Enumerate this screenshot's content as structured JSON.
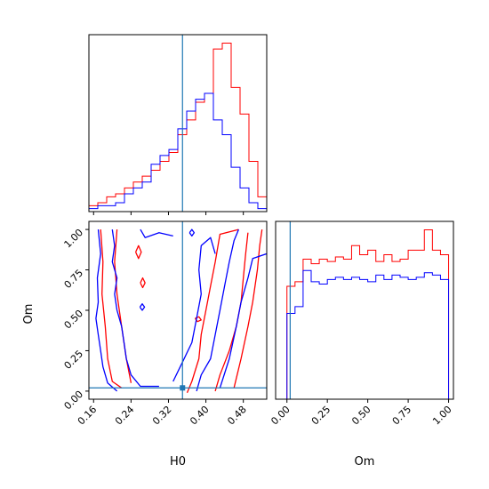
{
  "chart_data": [
    {
      "type": "histogram",
      "panel": "H0 marginal",
      "xlim": [
        0.15,
        0.53
      ],
      "truth": 0.35,
      "bin_edges": [
        0.15,
        0.169,
        0.188,
        0.207,
        0.226,
        0.245,
        0.264,
        0.283,
        0.302,
        0.321,
        0.34,
        0.359,
        0.378,
        0.397,
        0.416,
        0.435,
        0.454,
        0.473,
        0.492,
        0.511,
        0.53
      ],
      "series": [
        {
          "color": "#ff0000",
          "values": [
            2,
            3,
            5,
            6,
            8,
            10,
            12,
            14,
            17,
            20,
            26,
            31,
            37,
            40,
            55,
            57,
            42,
            33,
            17,
            5
          ]
        },
        {
          "color": "#0000ff",
          "values": [
            1,
            2,
            2,
            3,
            6,
            8,
            10,
            16,
            19,
            21,
            28,
            34,
            38,
            40,
            31,
            26,
            15,
            8,
            3,
            1
          ]
        }
      ]
    },
    {
      "type": "contour",
      "panel": "H0 vs Om",
      "xlabel": "H0",
      "ylabel": "Om",
      "xlim": [
        0.15,
        0.53
      ],
      "ylim": [
        -0.05,
        1.05
      ],
      "xticks": [
        "0.16",
        "0.24",
        "0.32",
        "0.40",
        "0.48"
      ],
      "xtick_values": [
        0.16,
        0.24,
        0.32,
        0.4,
        0.48
      ],
      "yticks": [
        "0.00",
        "0.25",
        "0.50",
        "0.75",
        "1.00"
      ],
      "ytick_values": [
        0.0,
        0.25,
        0.5,
        0.75,
        1.0
      ],
      "truth": {
        "x": 0.35,
        "y": 0.02
      },
      "series": [
        {
          "color": "#ff0000",
          "contours": [
            [
              [
                0.175,
                1.0
              ],
              [
                0.18,
                0.8
              ],
              [
                0.178,
                0.6
              ],
              [
                0.185,
                0.4
              ],
              [
                0.19,
                0.2
              ],
              [
                0.2,
                0.06
              ],
              [
                0.22,
                0.02
              ]
            ],
            [
              [
                0.21,
                1.0
              ],
              [
                0.205,
                0.8
              ],
              [
                0.21,
                0.6
              ],
              [
                0.22,
                0.4
              ],
              [
                0.23,
                0.2
              ],
              [
                0.24,
                0.05
              ]
            ],
            [
              [
                0.36,
                -0.01
              ],
              [
                0.37,
                0.06
              ],
              [
                0.385,
                0.2
              ],
              [
                0.39,
                0.35
              ],
              [
                0.4,
                0.5
              ],
              [
                0.41,
                0.65
              ],
              [
                0.42,
                0.8
              ],
              [
                0.43,
                0.97
              ],
              [
                0.47,
                1.0
              ]
            ],
            [
              [
                0.42,
                0.0
              ],
              [
                0.43,
                0.1
              ],
              [
                0.45,
                0.25
              ],
              [
                0.465,
                0.4
              ],
              [
                0.475,
                0.55
              ],
              [
                0.48,
                0.7
              ],
              [
                0.485,
                0.85
              ],
              [
                0.49,
                0.98
              ]
            ],
            [
              [
                0.46,
                0.02
              ],
              [
                0.475,
                0.2
              ],
              [
                0.49,
                0.4
              ],
              [
                0.5,
                0.55
              ],
              [
                0.51,
                0.75
              ],
              [
                0.515,
                0.9
              ],
              [
                0.52,
                1.0
              ]
            ],
            [
              [
                0.25,
                0.86
              ],
              [
                0.256,
                0.9
              ],
              [
                0.262,
                0.86
              ],
              [
                0.256,
                0.82
              ],
              [
                0.25,
                0.86
              ]
            ],
            [
              [
                0.26,
                0.67
              ],
              [
                0.265,
                0.7
              ],
              [
                0.27,
                0.67
              ],
              [
                0.265,
                0.64
              ],
              [
                0.26,
                0.67
              ]
            ],
            [
              [
                0.377,
                0.45
              ],
              [
                0.385,
                0.46
              ],
              [
                0.39,
                0.44
              ],
              [
                0.382,
                0.43
              ],
              [
                0.377,
                0.45
              ]
            ]
          ]
        },
        {
          "color": "#0000ff",
          "contours": [
            [
              [
                0.17,
                1.0
              ],
              [
                0.175,
                0.85
              ],
              [
                0.168,
                0.7
              ],
              [
                0.17,
                0.55
              ],
              [
                0.165,
                0.45
              ],
              [
                0.17,
                0.35
              ],
              [
                0.175,
                0.25
              ],
              [
                0.18,
                0.15
              ],
              [
                0.19,
                0.05
              ],
              [
                0.21,
                0.0
              ]
            ],
            [
              [
                0.2,
                1.0
              ],
              [
                0.205,
                0.9
              ],
              [
                0.2,
                0.8
              ],
              [
                0.21,
                0.7
              ],
              [
                0.205,
                0.6
              ],
              [
                0.21,
                0.5
              ],
              [
                0.22,
                0.4
              ],
              [
                0.225,
                0.3
              ],
              [
                0.23,
                0.2
              ],
              [
                0.24,
                0.1
              ],
              [
                0.26,
                0.03
              ],
              [
                0.3,
                0.03
              ]
            ],
            [
              [
                0.26,
                1.0
              ],
              [
                0.27,
                0.95
              ],
              [
                0.3,
                0.98
              ],
              [
                0.33,
                0.96
              ]
            ],
            [
              [
                0.33,
                0.06
              ],
              [
                0.35,
                0.18
              ],
              [
                0.37,
                0.3
              ],
              [
                0.38,
                0.45
              ],
              [
                0.39,
                0.6
              ],
              [
                0.385,
                0.75
              ],
              [
                0.39,
                0.9
              ],
              [
                0.41,
                0.95
              ],
              [
                0.42,
                0.85
              ]
            ],
            [
              [
                0.38,
                0.0
              ],
              [
                0.39,
                0.1
              ],
              [
                0.41,
                0.2
              ],
              [
                0.42,
                0.35
              ],
              [
                0.43,
                0.5
              ],
              [
                0.44,
                0.65
              ],
              [
                0.45,
                0.8
              ],
              [
                0.46,
                0.93
              ],
              [
                0.47,
                1.0
              ]
            ],
            [
              [
                0.43,
                0.02
              ],
              [
                0.45,
                0.2
              ],
              [
                0.465,
                0.4
              ],
              [
                0.475,
                0.55
              ],
              [
                0.49,
                0.7
              ],
              [
                0.5,
                0.82
              ],
              [
                0.53,
                0.85
              ]
            ],
            [
              [
                0.365,
                0.98
              ],
              [
                0.37,
                1.0
              ],
              [
                0.375,
                0.98
              ],
              [
                0.37,
                0.96
              ],
              [
                0.365,
                0.98
              ]
            ],
            [
              [
                0.259,
                0.52
              ],
              [
                0.264,
                0.54
              ],
              [
                0.269,
                0.52
              ],
              [
                0.264,
                0.5
              ],
              [
                0.259,
                0.52
              ]
            ]
          ]
        }
      ]
    },
    {
      "type": "histogram",
      "panel": "Om marginal",
      "xlabel": "Om",
      "xlim": [
        -0.07,
        1.03
      ],
      "xticks": [
        "0.00",
        "0.25",
        "0.50",
        "0.75",
        "1.00"
      ],
      "xtick_values": [
        0.0,
        0.25,
        0.5,
        0.75,
        1.0
      ],
      "truth": 0.02,
      "bin_edges": [
        0.0,
        0.05,
        0.1,
        0.15,
        0.2,
        0.25,
        0.3,
        0.35,
        0.4,
        0.45,
        0.5,
        0.55,
        0.6,
        0.65,
        0.7,
        0.75,
        0.8,
        0.85,
        0.9,
        0.95,
        1.0
      ],
      "series": [
        {
          "color": "#ff0000",
          "values": [
            50,
            52,
            62,
            60,
            62,
            61,
            63,
            62,
            68,
            64,
            66,
            61,
            64,
            61,
            62,
            66,
            66,
            75,
            66,
            64
          ]
        },
        {
          "color": "#0000ff",
          "values": [
            38,
            41,
            57,
            52,
            51,
            53,
            54,
            53,
            54,
            53,
            52,
            55,
            53,
            55,
            54,
            53,
            54,
            56,
            55,
            53
          ]
        }
      ]
    }
  ]
}
